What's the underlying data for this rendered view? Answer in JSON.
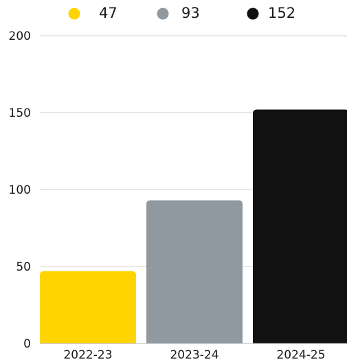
{
  "chart_data": {
    "type": "bar",
    "title": "",
    "xlabel": "",
    "ylabel": "",
    "categories": [
      "2022-23",
      "2023-24",
      "2024-25"
    ],
    "values": [
      47,
      93,
      152
    ],
    "colors": [
      "#ffd400",
      "#8f999f",
      "#111111"
    ],
    "ylim": [
      0,
      200
    ],
    "yticks": [
      0,
      50,
      100,
      150,
      200
    ],
    "grid": true,
    "legend_position": "top",
    "legend_labels": [
      "47",
      "93",
      "152"
    ]
  }
}
